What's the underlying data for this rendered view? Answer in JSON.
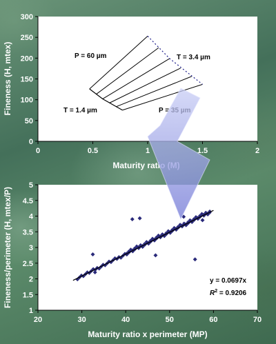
{
  "chart_data": [
    {
      "type": "line",
      "xlabel": "Maturity ratio (M)",
      "ylabel": "Fineness (H, mtex)",
      "xlim": [
        0,
        2
      ],
      "ylim": [
        0,
        300
      ],
      "x_ticks": [
        "0",
        "0.5",
        "1",
        "1.5",
        "2"
      ],
      "y_ticks": [
        "0",
        "50",
        "100",
        "150",
        "200",
        "250",
        "300"
      ],
      "grid": false,
      "annotations": [
        "P = 60 µm",
        "T = 3.4 µm",
        "T = 1.4 µm",
        "P = 35 µm"
      ],
      "series": [
        {
          "x": [
            0.47,
            1.0
          ],
          "y": [
            126,
            253
          ]
        },
        {
          "x": [
            0.53,
            1.1
          ],
          "y": [
            113,
            225
          ]
        },
        {
          "x": [
            0.59,
            1.2
          ],
          "y": [
            102,
            199
          ]
        },
        {
          "x": [
            0.65,
            1.3
          ],
          "y": [
            92,
            176
          ]
        },
        {
          "x": [
            0.71,
            1.4
          ],
          "y": [
            83,
            156
          ]
        },
        {
          "x": [
            0.77,
            1.5
          ],
          "y": [
            75,
            137
          ]
        }
      ],
      "boundaries": [
        {
          "style": "solid",
          "x": [
            0.47,
            0.59,
            0.77
          ],
          "y": [
            126,
            102,
            75
          ]
        },
        {
          "style": "dotted",
          "x": [
            1.0,
            1.2,
            1.5
          ],
          "y": [
            253,
            199,
            137
          ]
        }
      ]
    },
    {
      "type": "scatter",
      "xlabel": "Maturity ratio x perimeter (MP)",
      "ylabel": "Fineness/perimeter (H, mtex/P)",
      "xlim": [
        20,
        70
      ],
      "ylim": [
        1,
        5
      ],
      "x_ticks": [
        "20",
        "30",
        "40",
        "50",
        "60",
        "70"
      ],
      "y_ticks": [
        "1",
        "1.5",
        "2",
        "2.5",
        "3",
        "3.5",
        "4",
        "4.5",
        "5"
      ],
      "grid": false,
      "fit": {
        "slope": 0.0697,
        "x": [
          28,
          60
        ]
      },
      "equation": "y = 0.0697x",
      "r2_label": "R",
      "r2_sup": "2",
      "r2_value": " = 0.9206",
      "outliers": {
        "x": [
          32.5,
          33.0,
          41.5,
          43.2,
          46.8,
          53.2,
          55.8,
          57.5
        ],
        "y": [
          2.78,
          2.21,
          3.9,
          3.93,
          2.75,
          3.98,
          2.62,
          3.87
        ]
      },
      "band": {
        "x_start": 29,
        "x_end": 59.5,
        "step": 0.45
      },
      "marker_color": "#2a2a7a"
    }
  ]
}
